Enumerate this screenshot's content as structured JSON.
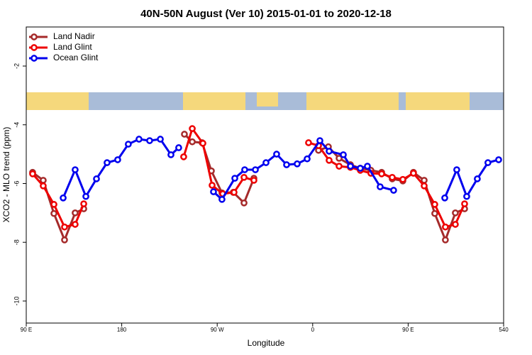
{
  "chart_data": {
    "type": "line",
    "title": "40N-50N August (Ver 10)   2015-01-01 to 2020-12-18",
    "x_label": "Longitude",
    "y_label": "XCO2 - MLO trend (ppm)",
    "xlim": [
      90,
      540
    ],
    "ylim": [
      -10.75,
      -0.67
    ],
    "xticks": [
      {
        "value": 90,
        "label": "90 E"
      },
      180,
      {
        "value": 270,
        "label": "90 W"
      },
      {
        "value": 360,
        "label": "0"
      },
      {
        "value": 450,
        "label": "90 E"
      },
      540
    ],
    "yticks": [
      -2,
      -4,
      -6,
      -8,
      -10
    ],
    "legend": "top-left",
    "series": [
      {
        "name": "Land Nadir",
        "color": "#a52a2a",
        "x": [
          96.0,
          106.0,
          116.1,
          126.1,
          136.1,
          144.2,
          null,
          239.1,
          246.5,
          255.8,
          264.5,
          274.5,
          285.2,
          295.3,
          304.6,
          null,
          365.5,
          374.8,
          384.9,
          395.6,
          404.9,
          414.9,
          425.0,
          435.0,
          445.0,
          455.0,
          465.1,
          475.1,
          485.1,
          494.5,
          503.2
        ],
        "values": [
          -5.62,
          -5.89,
          -7.02,
          -7.92,
          -7.0,
          -6.86,
          null,
          -4.32,
          -4.58,
          -4.61,
          -5.57,
          -6.32,
          -6.3,
          -6.66,
          -5.82,
          null,
          -4.87,
          -4.75,
          -5.14,
          -5.36,
          -5.48,
          -5.55,
          -5.62,
          -5.84,
          -5.91,
          -5.62,
          -5.89,
          -7.02,
          -7.92,
          -7.0,
          -6.86
        ]
      },
      {
        "name": "Land Glint",
        "color": "#ee0000",
        "x": [
          96.0,
          106.0,
          116.1,
          126.1,
          136.1,
          144.2,
          null,
          238.4,
          246.5,
          256.5,
          265.2,
          275.2,
          285.9,
          295.3,
          304.6,
          null,
          356.1,
          365.5,
          375.5,
          384.9,
          395.6,
          404.9,
          414.9,
          425.0,
          435.0,
          445.0,
          455.0,
          465.1,
          475.1,
          485.1,
          494.5,
          503.2
        ],
        "values": [
          -5.67,
          -6.08,
          -6.71,
          -7.48,
          -7.39,
          -6.69,
          null,
          -5.09,
          -4.13,
          -4.63,
          -6.06,
          -6.35,
          -6.3,
          -5.79,
          -5.89,
          null,
          -4.61,
          -4.71,
          -5.21,
          -5.41,
          -5.45,
          -5.55,
          -5.65,
          -5.67,
          -5.79,
          -5.86,
          -5.65,
          -6.08,
          -6.71,
          -7.48,
          -7.39,
          -6.69
        ]
      },
      {
        "name": "Ocean Glint",
        "color": "#0000ee",
        "x": [
          124.8,
          136.1,
          146.2,
          156.2,
          166.2,
          176.2,
          186.2,
          196.3,
          206.3,
          216.4,
          226.4,
          233.7,
          null,
          266.5,
          274.5,
          286.6,
          295.9,
          306.0,
          316.0,
          326.0,
          335.4,
          345.4,
          354.8,
          366.8,
          375.5,
          388.9,
          395.6,
          404.9,
          411.6,
          423.6,
          436.3,
          null,
          484.5,
          495.8,
          505.2,
          515.2,
          525.2,
          535.3
        ],
        "values": [
          -6.49,
          -5.53,
          -6.44,
          -5.84,
          -5.29,
          -5.19,
          -4.66,
          -4.49,
          -4.54,
          -4.49,
          -5.02,
          -4.78,
          null,
          -6.28,
          -6.54,
          -5.82,
          -5.53,
          -5.53,
          -5.29,
          -5.0,
          -5.36,
          -5.33,
          -5.16,
          -4.54,
          -4.9,
          -5.02,
          -5.41,
          -5.48,
          -5.41,
          -6.11,
          -6.23,
          null,
          -6.49,
          -5.53,
          -6.44,
          -5.84,
          -5.29,
          -5.19
        ]
      }
    ]
  }
}
